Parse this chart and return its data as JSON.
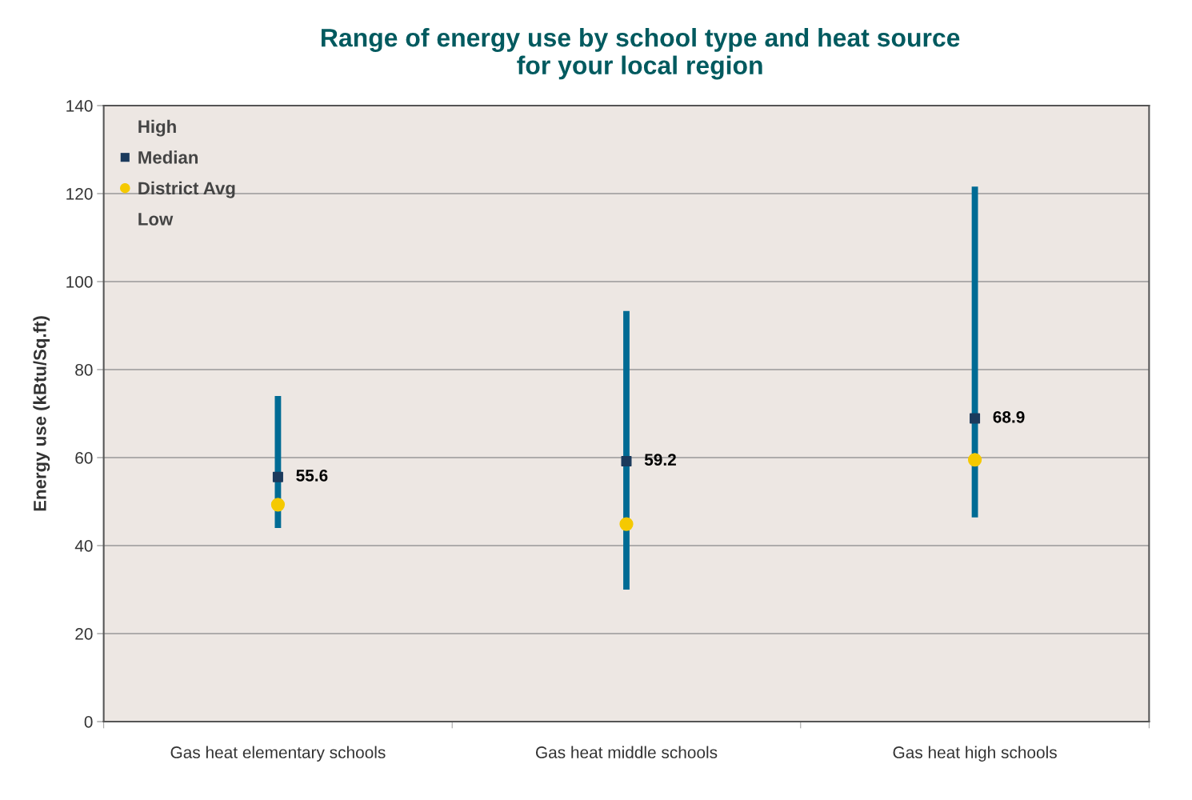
{
  "chart_data": {
    "type": "scatter",
    "title": "Range of energy use by school type and heat source\nfor your local region",
    "ylabel": "Energy use (kBtu/Sq.ft)",
    "categories": [
      "Gas heat elementary schools",
      "Gas heat middle schools",
      "Gas heat high schools"
    ],
    "series": [
      {
        "type": "bar",
        "color": "#006b94",
        "base": [
          44.0,
          30.0,
          46.4
        ],
        "values": [
          30.0,
          63.3,
          75.2
        ]
      },
      {
        "name": "Median",
        "marker": "square",
        "color": "#1b3a5c",
        "values": [
          55.6,
          59.2,
          68.9
        ],
        "value_labels": [
          "55.6",
          "59.2",
          "68.9"
        ]
      },
      {
        "name": "District Avg",
        "marker": "circle",
        "color": "#f5c900",
        "values": [
          49.3,
          44.9,
          59.5
        ]
      }
    ],
    "annotations": [
      "High",
      "Low"
    ],
    "ylim": [
      0,
      140
    ],
    "yticks": [
      0,
      20,
      40,
      60,
      80,
      100,
      120,
      140
    ],
    "grid": "y",
    "legend": "top left"
  }
}
